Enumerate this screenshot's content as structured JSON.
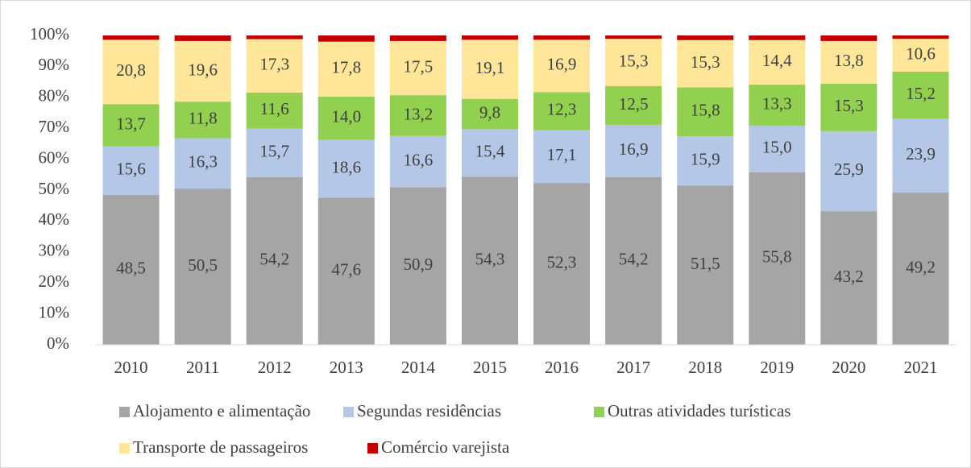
{
  "chart_data": {
    "type": "stacked_bar",
    "categories": [
      "2010",
      "2011",
      "2012",
      "2013",
      "2014",
      "2015",
      "2016",
      "2017",
      "2018",
      "2019",
      "2020",
      "2021"
    ],
    "series": [
      {
        "name": "Alojamento e alimentação",
        "color": "#a5a5a5",
        "values": [
          48.5,
          50.5,
          54.2,
          47.6,
          50.9,
          54.3,
          52.3,
          54.2,
          51.5,
          55.8,
          43.2,
          49.2
        ],
        "value_labels": [
          "48,5",
          "50,5",
          "54,2",
          "47,6",
          "50,9",
          "54,3",
          "52,3",
          "54,2",
          "51,5",
          "55,8",
          "43,2",
          "49,2"
        ]
      },
      {
        "name": "Segundas residências",
        "color": "#b4c7e7",
        "values": [
          15.6,
          16.3,
          15.7,
          18.6,
          16.6,
          15.4,
          17.1,
          16.9,
          15.9,
          15.0,
          25.9,
          23.9
        ],
        "value_labels": [
          "15,6",
          "16,3",
          "15,7",
          "18,6",
          "16,6",
          "15,4",
          "17,1",
          "16,9",
          "15,9",
          "15,0",
          "25,9",
          "23,9"
        ]
      },
      {
        "name": "Outras atividades turísticas",
        "color": "#92d050",
        "values": [
          13.7,
          11.8,
          11.6,
          14.0,
          13.2,
          9.8,
          12.3,
          12.5,
          15.8,
          13.3,
          15.3,
          15.2
        ],
        "value_labels": [
          "13,7",
          "11,8",
          "11,6",
          "14,0",
          "13,2",
          "9,8",
          "12,3",
          "12,5",
          "15,8",
          "13,3",
          "15,3",
          "15,2"
        ]
      },
      {
        "name": "Transporte de passageiros",
        "color": "#ffe699",
        "values": [
          20.8,
          19.6,
          17.3,
          17.8,
          17.5,
          19.1,
          16.9,
          15.3,
          15.3,
          14.4,
          13.8,
          10.6
        ],
        "value_labels": [
          "20,8",
          "19,6",
          "17,3",
          "17,8",
          "17,5",
          "19,1",
          "16,9",
          "15,3",
          "15,3",
          "14,4",
          "13,8",
          "10,6"
        ]
      },
      {
        "name": "Comércio varejista",
        "color": "#c00000",
        "values": [
          1.4,
          1.8,
          1.2,
          2.0,
          1.8,
          1.4,
          1.4,
          1.1,
          1.5,
          1.5,
          1.8,
          1.1
        ]
      }
    ],
    "ylim": [
      0,
      100
    ],
    "yticks": [
      {
        "value": 0,
        "label": "0%"
      },
      {
        "value": 10,
        "label": "10%"
      },
      {
        "value": 20,
        "label": "20%"
      },
      {
        "value": 30,
        "label": "30%"
      },
      {
        "value": 40,
        "label": "40%"
      },
      {
        "value": 50,
        "label": "50%"
      },
      {
        "value": 60,
        "label": "60%"
      },
      {
        "value": 70,
        "label": "70%"
      },
      {
        "value": 80,
        "label": "80%"
      },
      {
        "value": 90,
        "label": "90%"
      },
      {
        "value": 100,
        "label": "100%"
      }
    ]
  }
}
